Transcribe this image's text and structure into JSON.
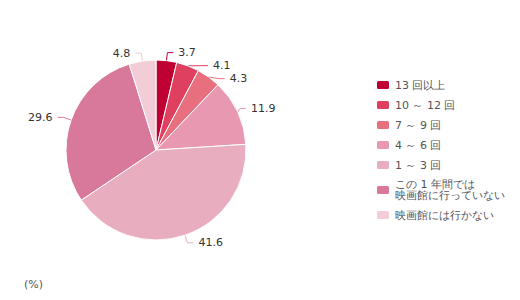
{
  "chart_data": {
    "type": "pie",
    "categories": [
      "13 回以上",
      "10 ～ 12 回",
      "7 ～ 9 回",
      "4 ～ 6 回",
      "1 ～ 3 回",
      "この 1 年間では\n映画館に行っていない",
      "映画館には行かない"
    ],
    "values": [
      3.7,
      4.1,
      4.3,
      11.9,
      41.6,
      29.6,
      4.8
    ],
    "colors": [
      "#be0032",
      "#df4060",
      "#e8707e",
      "#e898b0",
      "#e8aec0",
      "#d8789a",
      "#f2cdd8"
    ],
    "data_labels": true,
    "legend": "right",
    "annotations": [
      "(%)"
    ]
  }
}
